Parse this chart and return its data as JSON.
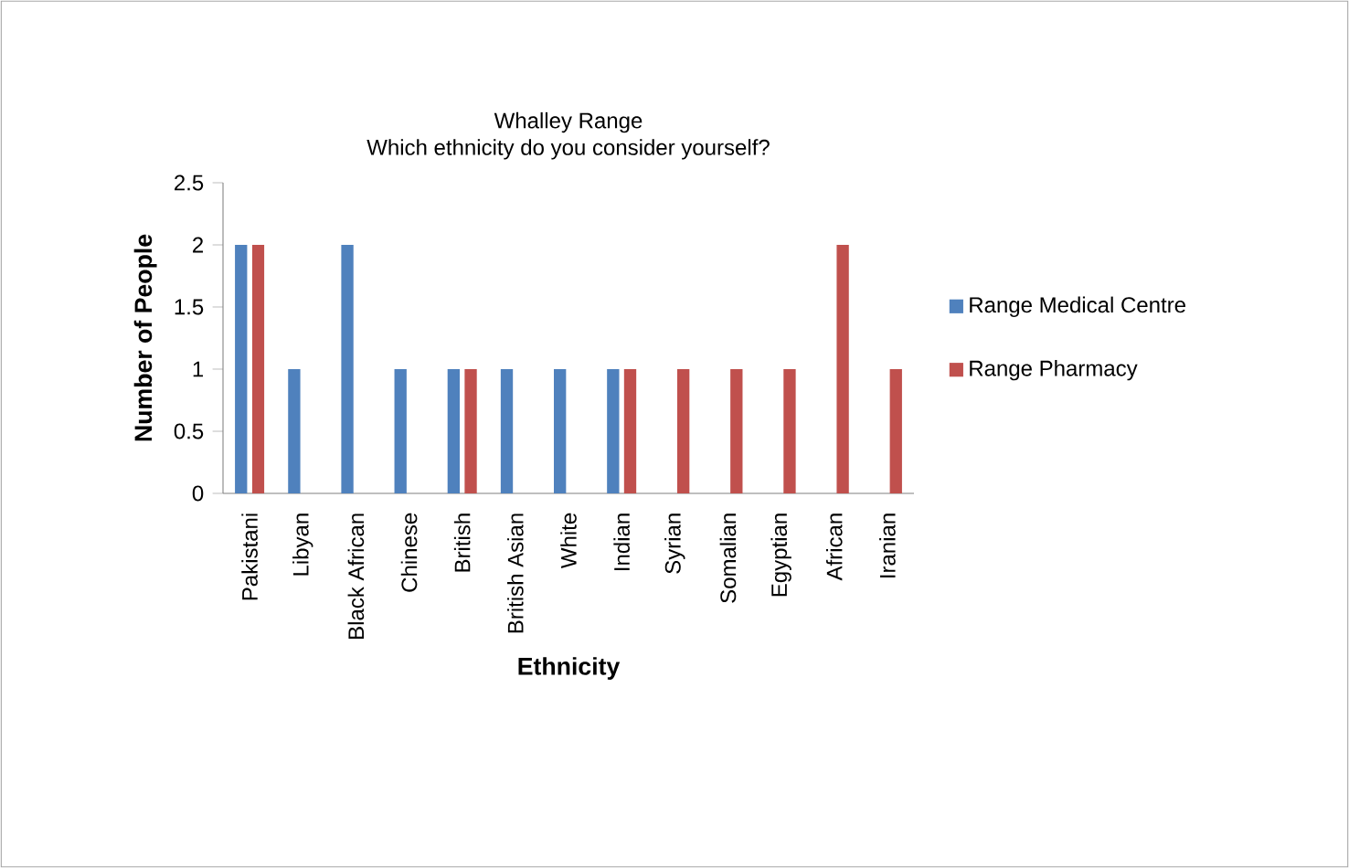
{
  "chart_data": {
    "type": "bar",
    "title": "Whalley Range",
    "subtitle": "Which ethnicity do you consider yourself?",
    "xlabel": "Ethnicity",
    "ylabel": "Number of People",
    "categories": [
      "Pakistani",
      "Libyan",
      "Black African",
      "Chinese",
      "British",
      "British Asian",
      "White",
      "Indian",
      "Syrian",
      "Somalian",
      "Egyptian",
      "African",
      "Iranian"
    ],
    "series": [
      {
        "name": "Range Medical Centre",
        "color": "#4f81bd",
        "values": [
          2,
          1,
          2,
          1,
          1,
          1,
          1,
          1,
          null,
          null,
          null,
          null,
          null
        ]
      },
      {
        "name": "Range Pharmacy",
        "color": "#c0504d",
        "values": [
          2,
          null,
          null,
          null,
          1,
          null,
          null,
          1,
          1,
          1,
          1,
          2,
          1
        ]
      }
    ],
    "ylim": [
      0,
      2.5
    ],
    "yticks": [
      0,
      0.5,
      1,
      1.5,
      2,
      2.5
    ],
    "legend": "right"
  }
}
